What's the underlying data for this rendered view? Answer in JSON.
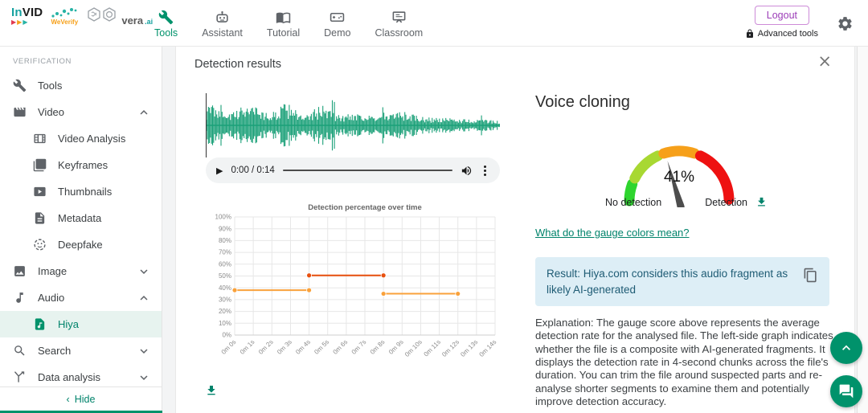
{
  "colors": {
    "accent": "#00926B",
    "accent_light_bg": "#e7f3ef",
    "logout_purple": "#9c3db8",
    "waveform_green": "#1aa078",
    "result_box_bg": "#ddeef6",
    "result_text_blue": "#1e5b74",
    "chart_line_low": "#F9A13B",
    "chart_line_high": "#E8500F"
  },
  "navbar": {
    "logos": {
      "invid_in": "In",
      "invid_vid": "VID",
      "invid_tris": "▶▶▶",
      "weverify": "WeVerify",
      "vera": "vera",
      "vera_ai": ".ai"
    },
    "tabs": [
      {
        "label": "Tools",
        "icon": "wrench-icon",
        "active": true
      },
      {
        "label": "Assistant",
        "icon": "robot-icon",
        "active": false
      },
      {
        "label": "Tutorial",
        "icon": "book-icon",
        "active": false
      },
      {
        "label": "Demo",
        "icon": "demo-icon",
        "active": false
      },
      {
        "label": "Classroom",
        "icon": "classroom-icon",
        "active": false
      }
    ],
    "logout_label": "Logout",
    "advanced_tools_label": "Advanced tools"
  },
  "sidebar": {
    "section_label": "VERIFICATION",
    "items": [
      {
        "label": "Tools",
        "icon": "wrench-icon",
        "level": 0,
        "chevron": null,
        "active": false
      },
      {
        "label": "Video",
        "icon": "movie-icon",
        "level": 0,
        "chevron": "up",
        "active": false
      },
      {
        "label": "Video Analysis",
        "icon": "video-analysis-icon",
        "level": 1,
        "chevron": null,
        "active": false
      },
      {
        "label": "Keyframes",
        "icon": "keyframes-icon",
        "level": 1,
        "chevron": null,
        "active": false
      },
      {
        "label": "Thumbnails",
        "icon": "thumbnails-icon",
        "level": 1,
        "chevron": null,
        "active": false
      },
      {
        "label": "Metadata",
        "icon": "document-icon",
        "level": 1,
        "chevron": null,
        "active": false
      },
      {
        "label": "Deepfake",
        "icon": "deepfake-icon",
        "level": 1,
        "chevron": null,
        "active": false
      },
      {
        "label": "Image",
        "icon": "image-icon",
        "level": 0,
        "chevron": "down",
        "active": false
      },
      {
        "label": "Audio",
        "icon": "music-note-icon",
        "level": 0,
        "chevron": "up",
        "active": false
      },
      {
        "label": "Hiya",
        "icon": "audio-file-icon",
        "level": 1,
        "chevron": null,
        "active": true
      },
      {
        "label": "Search",
        "icon": "search-icon",
        "level": 0,
        "chevron": "down",
        "active": false
      },
      {
        "label": "Data analysis",
        "icon": "slingshot-icon",
        "level": 0,
        "chevron": "down",
        "active": false
      }
    ],
    "hide_label": "Hide",
    "hide_chevron": "‹"
  },
  "panel": {
    "title": "Detection results",
    "close_glyph": "×",
    "player": {
      "time": "0:00 / 0:14"
    }
  },
  "voice_cloning": {
    "heading": "Voice cloning",
    "gauge": {
      "value": 41,
      "value_label": "41%",
      "left_label": "No detection",
      "right_label": "Detection",
      "segments": [
        {
          "from": 0,
          "to": 11,
          "color": "#2ed52e"
        },
        {
          "from": 15,
          "to": 36,
          "color": "#a8d832"
        },
        {
          "from": 40,
          "to": 60,
          "color": "#f6a01a"
        },
        {
          "from": 64,
          "to": 99,
          "color": "#ee1111"
        }
      ],
      "needle_color": "#4d4d4d"
    },
    "link": "What do the gauge colors mean?",
    "result_text": "Result: Hiya.com considers this audio fragment as likely AI-generated",
    "explanation": "Explanation: The gauge score above represents the average detection rate for the analysed file. The left-side graph indicates whether the file is a composite with AI-generated fragments. It displays the detection rate in 4-second chunks across the file's duration. You can trim the file around suspected parts and re-analyse shorter segments to examine them and potentially improve detection accuracy."
  },
  "chart_data": {
    "type": "line",
    "step": true,
    "title": "Detection percentage over time",
    "xlabel": "",
    "ylabel": "",
    "xlim": [
      0,
      14
    ],
    "ylim": [
      0,
      100
    ],
    "grid": true,
    "x_tick_labels": [
      "0m 0s",
      "0m 1s",
      "0m 2s",
      "0m 3s",
      "0m 4s",
      "0m 5s",
      "0m 6s",
      "0m 7s",
      "0m 8s",
      "0m 9s",
      "0m 10s",
      "0m 11s",
      "0m 12s",
      "0m 13s",
      "0m 14s"
    ],
    "y_tick_labels": [
      "0%",
      "10%",
      "20%",
      "30%",
      "40%",
      "50%",
      "60%",
      "70%",
      "80%",
      "90%",
      "100%"
    ],
    "series": [
      {
        "name": "detection-percentage",
        "points": [
          {
            "t": 0,
            "v": 38
          },
          {
            "t": 4,
            "v": 38
          },
          {
            "t": 4,
            "v": 50.5
          },
          {
            "t": 8,
            "v": 50.5
          },
          {
            "t": 8,
            "v": 35
          },
          {
            "t": 12,
            "v": 35
          }
        ],
        "high_threshold": 50,
        "color_low": "#F9A13B",
        "color_high": "#E8500F"
      }
    ]
  }
}
